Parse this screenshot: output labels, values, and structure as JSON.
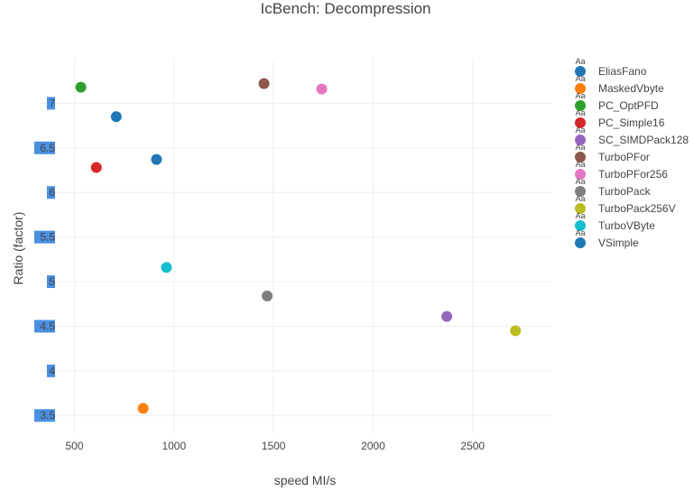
{
  "chart_data": {
    "type": "scatter",
    "title": "IcBench: Decompression",
    "xlabel": "speed MI/s",
    "ylabel": "Ratio (factor)",
    "xlim": [
      330,
      2900
    ],
    "ylim": [
      3.3,
      7.5
    ],
    "x_ticks": [
      {
        "value": 500,
        "label": "500"
      },
      {
        "value": 1000,
        "label": "1000"
      },
      {
        "value": 1500,
        "label": "1500"
      },
      {
        "value": 2000,
        "label": "2000"
      },
      {
        "value": 2500,
        "label": "2500"
      }
    ],
    "y_ticks": [
      {
        "value": 3.5,
        "label": "3.5"
      },
      {
        "value": 4,
        "label": "4"
      },
      {
        "value": 4.5,
        "label": "4.5"
      },
      {
        "value": 5,
        "label": "5"
      },
      {
        "value": 5.5,
        "label": "5.5"
      },
      {
        "value": 6,
        "label": "6"
      },
      {
        "value": 6.5,
        "label": "6.5"
      },
      {
        "value": 7,
        "label": "7"
      }
    ],
    "y_tick_highlight": "#4a90e2",
    "grid": true,
    "legend_position": "right",
    "legend_marker_text": "Aa",
    "series": [
      {
        "name": "EliasFano",
        "color": "#1f77b4",
        "x": 710,
        "y": 6.85
      },
      {
        "name": "MaskedVbyte",
        "color": "#ff7f0e",
        "x": 845,
        "y": 3.58
      },
      {
        "name": "PC_OptPFD",
        "color": "#2ca02c",
        "x": 532,
        "y": 7.18
      },
      {
        "name": "PC_Simple16",
        "color": "#d62728",
        "x": 610,
        "y": 6.28
      },
      {
        "name": "SC_SIMDPack128",
        "color": "#9467bd",
        "x": 2370,
        "y": 4.61
      },
      {
        "name": "TurboPFor",
        "color": "#8c564b",
        "x": 1452,
        "y": 7.22
      },
      {
        "name": "TurboPFor256",
        "color": "#e377c2",
        "x": 1742,
        "y": 7.16
      },
      {
        "name": "TurboPack",
        "color": "#7f7f7f",
        "x": 1468,
        "y": 4.84
      },
      {
        "name": "TurboPack256V",
        "color": "#bcbd22",
        "x": 2715,
        "y": 4.45
      },
      {
        "name": "TurboVByte",
        "color": "#17becf",
        "x": 962,
        "y": 5.16
      },
      {
        "name": "VSimple",
        "color": "#1f77b4",
        "x": 912,
        "y": 6.37
      }
    ]
  }
}
